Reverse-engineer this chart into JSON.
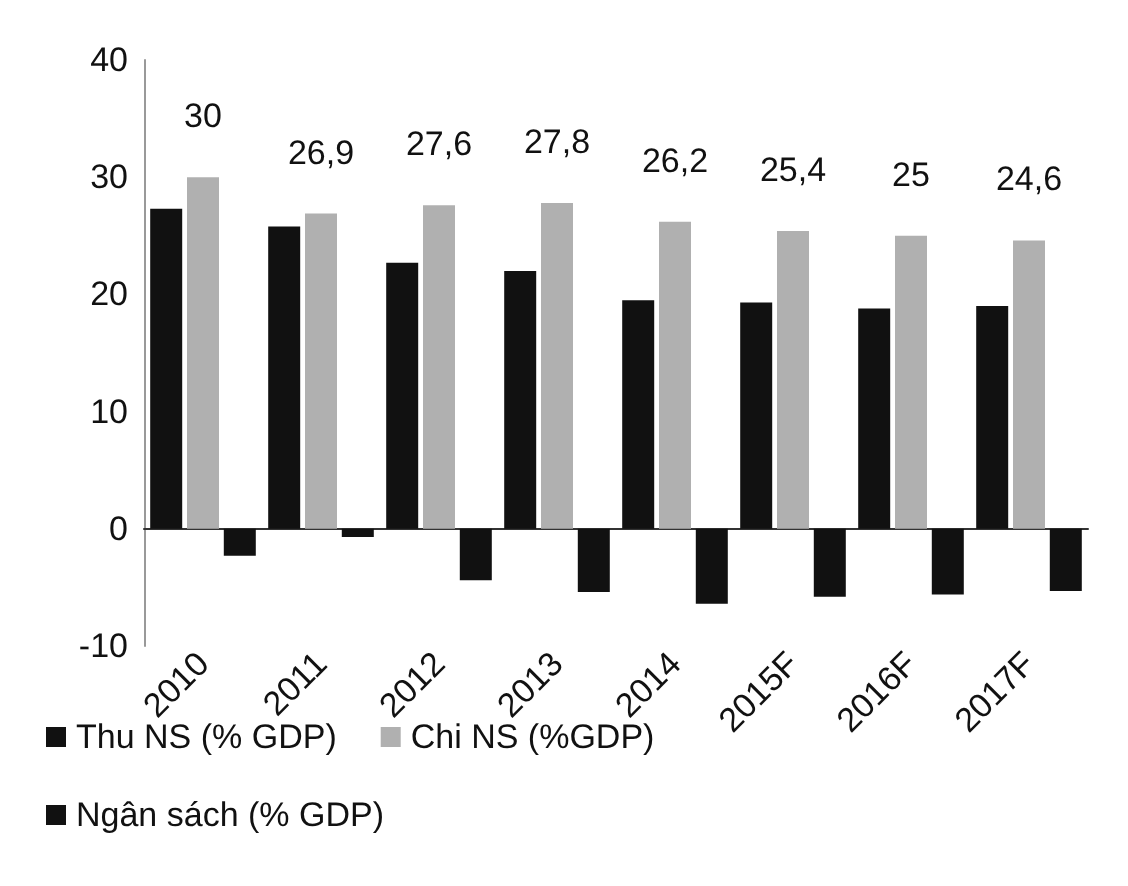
{
  "chart_data": {
    "type": "bar",
    "categories": [
      "2010",
      "2011",
      "2012",
      "2013",
      "2014",
      "2015F",
      "2016F",
      "2017F"
    ],
    "series": [
      {
        "name": "Thu NS (% GDP)",
        "color": "#111111",
        "values": [
          27.3,
          25.8,
          22.7,
          22.0,
          19.5,
          19.3,
          18.8,
          19.0
        ]
      },
      {
        "name": "Chi NS (%GDP)",
        "color": "#b0b0b0",
        "values": [
          30,
          26.9,
          27.6,
          27.8,
          26.2,
          25.4,
          25,
          24.6
        ],
        "value_labels": [
          "30",
          "26,9",
          "27,6",
          "27,8",
          "26,2",
          "25,4",
          "25",
          "24,6"
        ]
      },
      {
        "name": "Ngân sách (% GDP)",
        "color": "#111111",
        "values": [
          -2.3,
          -0.7,
          -4.4,
          -5.4,
          -6.4,
          -5.8,
          -5.6,
          -5.3
        ]
      }
    ],
    "ylim": [
      -10,
      40
    ],
    "yticks": [
      -10,
      0,
      10,
      20,
      30,
      40
    ],
    "legend": "bottom"
  }
}
